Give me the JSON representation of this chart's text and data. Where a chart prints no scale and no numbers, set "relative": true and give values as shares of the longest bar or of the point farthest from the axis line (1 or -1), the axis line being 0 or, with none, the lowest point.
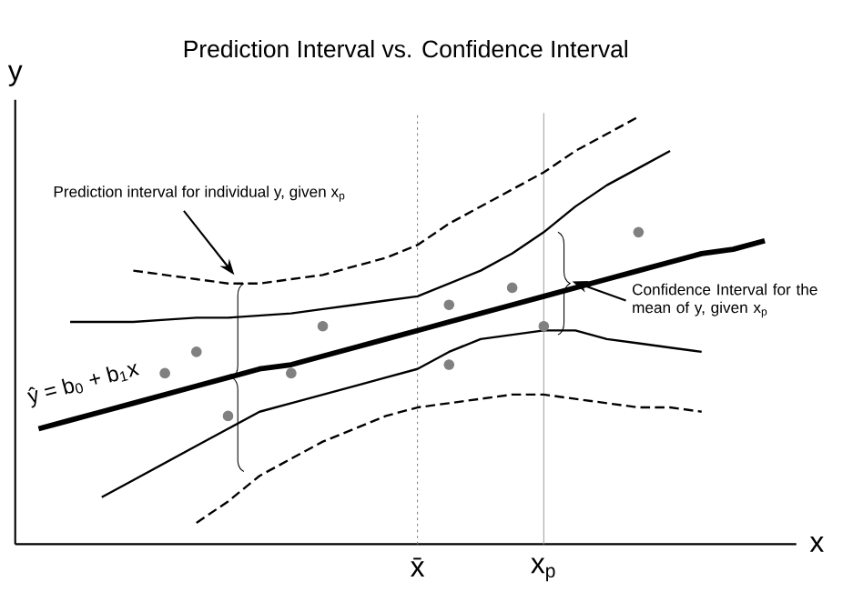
{
  "chart_data": {
    "type": "line",
    "title": "Prediction Interval vs. Confidence Interval",
    "xlabel": "x",
    "ylabel": "y",
    "relative": true,
    "tick_labels": "x",
    "categories": [
      null,
      null,
      null,
      null,
      null,
      null,
      null,
      null,
      null,
      null,
      null,
      null,
      "x̄",
      null,
      null,
      null,
      "x$_{p}$",
      null,
      null,
      null,
      null,
      null,
      null,
      null,
      null
    ],
    "series": [
      {
        "color": "#000000",
        "line_style": "solid",
        "values": [
          0.27,
          0.29,
          0.31,
          0.33,
          0.35,
          0.37,
          0.39,
          0.41,
          0.42,
          0.44,
          0.46,
          0.48,
          0.5,
          0.52,
          0.54,
          0.56,
          0.58,
          0.6,
          0.62,
          0.64,
          0.66,
          0.68,
          0.69,
          0.71,
          null
        ]
      },
      {
        "color": "#000000",
        "line_style": "solid",
        "values": [
          null,
          0.52,
          0.52,
          0.52,
          0.525,
          0.53,
          0.53,
          0.535,
          0.54,
          0.55,
          0.56,
          0.57,
          0.58,
          0.61,
          0.64,
          0.68,
          0.73,
          0.79,
          0.84,
          0.88,
          0.92,
          null,
          null,
          null,
          null
        ]
      },
      {
        "color": "#000000",
        "line_style": "solid",
        "values": [
          null,
          null,
          0.11,
          0.15,
          0.19,
          0.23,
          0.27,
          0.31,
          0.33,
          0.35,
          0.37,
          0.39,
          0.41,
          0.45,
          0.48,
          0.49,
          0.5,
          0.5,
          0.48,
          0.47,
          0.46,
          0.45,
          null,
          null,
          null
        ]
      },
      {
        "color": "#000000",
        "line_style": "dashed",
        "values": [
          null,
          null,
          null,
          0.64,
          0.63,
          0.62,
          0.61,
          0.61,
          0.62,
          0.63,
          0.65,
          0.67,
          0.7,
          0.75,
          0.79,
          0.83,
          0.87,
          0.92,
          0.96,
          1.0,
          null,
          null,
          null,
          null,
          null
        ]
      },
      {
        "color": "#000000",
        "line_style": "dashed",
        "values": [
          null,
          null,
          null,
          null,
          null,
          0.05,
          0.1,
          0.16,
          0.2,
          0.24,
          0.27,
          0.3,
          0.32,
          0.33,
          0.34,
          0.35,
          0.35,
          0.34,
          0.33,
          0.32,
          0.32,
          0.31,
          null,
          null,
          null
        ]
      },
      {
        "type": "scatter",
        "color": "#808080",
        "marker": "circle",
        "values": [
          null,
          null,
          null,
          null,
          0.4,
          0.45,
          0.3,
          null,
          0.4,
          0.51,
          null,
          null,
          null,
          0.56,
          null,
          0.6,
          0.51,
          null,
          null,
          0.73,
          null,
          null,
          null,
          null,
          null
        ]
      },
      {
        "type": "scatter",
        "color": "#808080",
        "marker": "circle",
        "values": [
          null,
          null,
          null,
          null,
          null,
          null,
          null,
          null,
          null,
          null,
          null,
          null,
          null,
          0.42,
          null,
          null,
          null,
          null,
          null,
          null,
          null,
          null,
          null,
          null,
          null
        ]
      }
    ],
    "ref_lines": [
      {
        "axis": "x",
        "value": "x̄",
        "color": "#808080",
        "line_style": "dotted"
      },
      {
        "axis": "x",
        "value": "x$_{p}$",
        "color": "#a0a0a0",
        "line_style": "solid"
      }
    ],
    "annotations": [
      "Prediction interval for individual y, given x$_{p}$",
      "Confidence Interval for the mean of y, given x$_{p}$",
      "ŷ = b$_{0}$ + b$_{1}$x"
    ]
  }
}
